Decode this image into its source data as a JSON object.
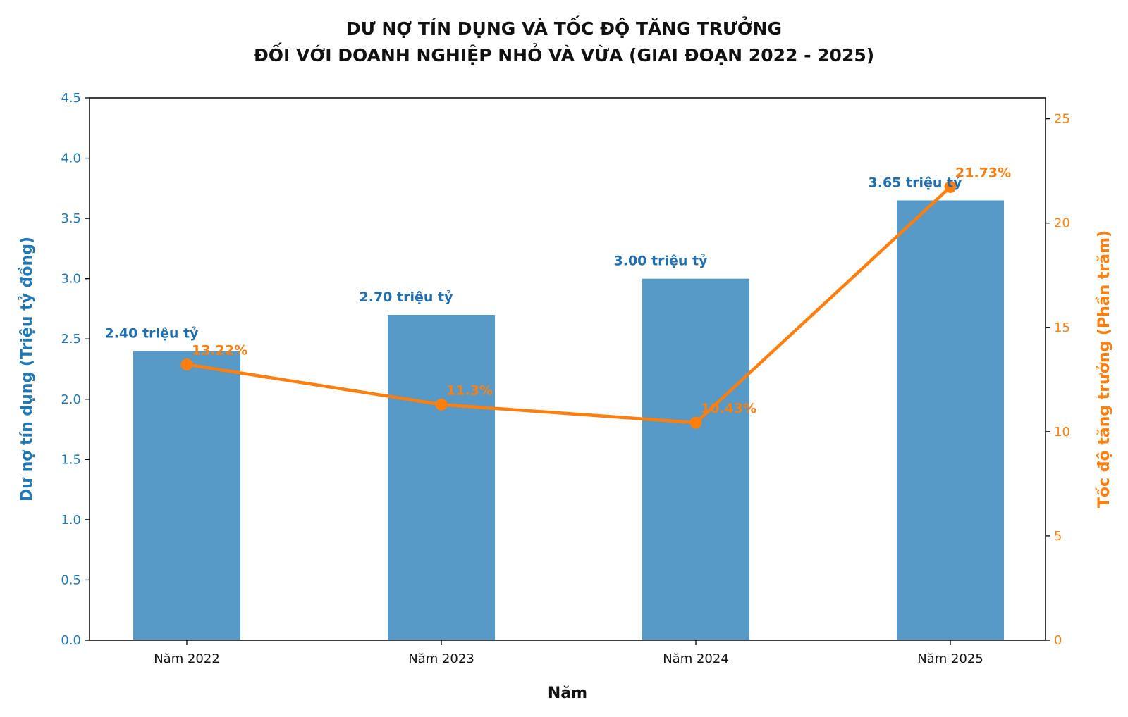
{
  "chart_data": {
    "type": "bar",
    "title_line1": "DƯ NỢ TÍN DỤNG VÀ TỐC ĐỘ TĂNG TRƯỞNG",
    "title_line2": "ĐỐI VỚI DOANH NGHIỆP NHỎ VÀ VỪA (GIAI ĐOẠN 2022 - 2025)",
    "xlabel": "Năm",
    "ylabel_left": "Dư nợ tín dụng (Triệu tỷ đồng)",
    "ylabel_right": "Tốc độ tăng trưởng (Phần trăm)",
    "categories": [
      "Năm 2022",
      "Năm 2023",
      "Năm 2024",
      "Năm 2025"
    ],
    "series": [
      {
        "kind": "bar",
        "axis": "left",
        "values": [
          2.4,
          2.7,
          3.0,
          3.65
        ],
        "labels": [
          "2.40 triệu tỷ",
          "2.70 triệu tỷ",
          "3.00 triệu tỷ",
          "3.65 triệu tỷ"
        ]
      },
      {
        "kind": "line",
        "axis": "right",
        "values": [
          13.22,
          11.3,
          10.43,
          21.73
        ],
        "labels": [
          "13.22%",
          "11.3%",
          "10.43%",
          "21.73%"
        ]
      }
    ],
    "ylim_left": [
      0,
      4.5
    ],
    "yticks_left": [
      "0.0",
      "0.5",
      "1.0",
      "1.5",
      "2.0",
      "2.5",
      "3.0",
      "3.5",
      "4.0",
      "4.5"
    ],
    "ylim_right": [
      0,
      26
    ],
    "yticks_right": [
      "0",
      "5",
      "10",
      "15",
      "20",
      "25"
    ],
    "grid": false,
    "colors": {
      "bar": "#5799c7",
      "bar_label": "#1f6fb0",
      "line": "#ff7f0e",
      "left_axis": "#1f77b4",
      "right_axis": "#ff7f0e"
    }
  }
}
